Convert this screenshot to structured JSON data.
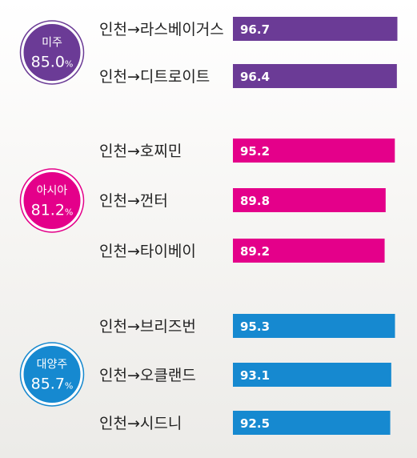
{
  "chart_data": {
    "type": "bar",
    "orientation": "horizontal",
    "xlim": [
      0,
      100
    ],
    "groups": [
      {
        "region": "미주",
        "average": "85.0",
        "unit": "%",
        "color": "#6b3b96",
        "items": [
          {
            "route": "인천→라스베이거스",
            "value": 96.7
          },
          {
            "route": "인천→디트로이트",
            "value": 96.4
          }
        ]
      },
      {
        "region": "아시아",
        "average": "81.2",
        "unit": "%",
        "color": "#e4008a",
        "items": [
          {
            "route": "인천→호찌민",
            "value": 95.2
          },
          {
            "route": "인천→껀터",
            "value": 89.8
          },
          {
            "route": "인천→타이베이",
            "value": 89.2
          }
        ]
      },
      {
        "region": "대양주",
        "average": "85.7",
        "unit": "%",
        "color": "#1689d0",
        "items": [
          {
            "route": "인천→브리즈번",
            "value": 95.3
          },
          {
            "route": "인천→오클랜드",
            "value": 93.1
          },
          {
            "route": "인천→시드니",
            "value": 92.5
          }
        ]
      }
    ]
  }
}
